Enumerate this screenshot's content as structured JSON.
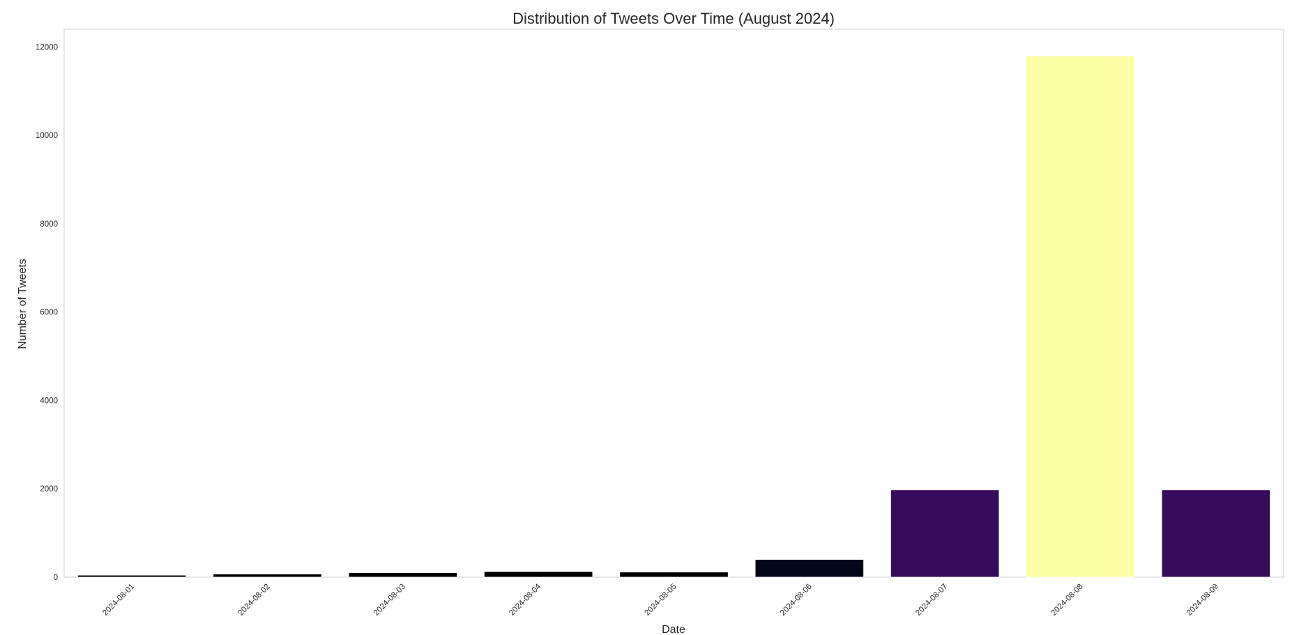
{
  "chart_data": {
    "type": "bar",
    "title": "Distribution of Tweets Over Time (August 2024)",
    "xlabel": "Date",
    "ylabel": "Number of Tweets",
    "categories": [
      "2024-08-01",
      "2024-08-02",
      "2024-08-03",
      "2024-08-04",
      "2024-08-05",
      "2024-08-06",
      "2024-08-07",
      "2024-08-08",
      "2024-08-09"
    ],
    "values": [
      45,
      70,
      100,
      125,
      115,
      400,
      1975,
      11800,
      1975
    ],
    "bar_colors": [
      "#000004",
      "#000004",
      "#000004",
      "#000004",
      "#000004",
      "#03051a",
      "#360b5b",
      "#fcffa4",
      "#360b5b"
    ],
    "ylim": [
      0,
      12400
    ],
    "yticks": [
      0,
      2000,
      4000,
      6000,
      8000,
      10000,
      12000
    ],
    "grid": false,
    "legend": "none",
    "frame_color": "#cccccc"
  }
}
